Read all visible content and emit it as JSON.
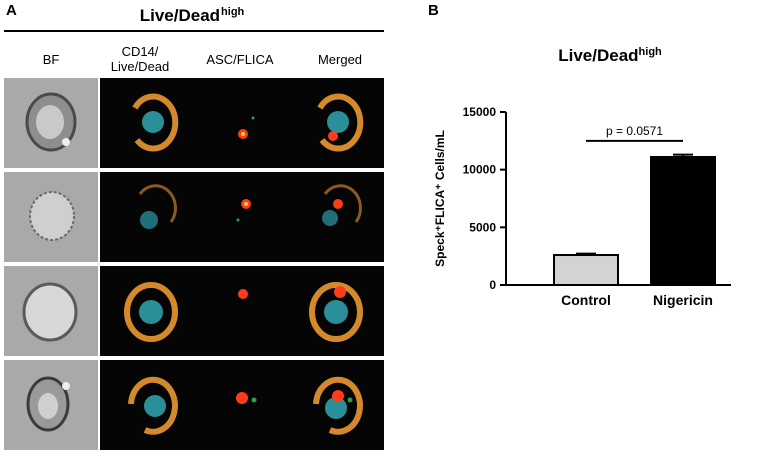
{
  "panel_a": {
    "letter": "A",
    "title": "Live/Dead",
    "title_sup": "high",
    "columns": [
      "BF",
      "CD14/\nLive/Dead",
      "ASC/FLICA",
      "Merged"
    ]
  },
  "panel_b": {
    "letter": "B"
  },
  "chart_data": {
    "type": "bar",
    "title": "Live/Dead",
    "title_sup": "high",
    "categories": [
      "Control",
      "Nigericin"
    ],
    "values": [
      2600,
      11100
    ],
    "errors": [
      120,
      200
    ],
    "bar_colors": [
      "#d3d3d3",
      "#000000"
    ],
    "ylabel": "Speck⁺FLICA⁺ Cells/mL",
    "ylim": [
      0,
      15000
    ],
    "yticks": [
      0,
      5000,
      10000,
      15000
    ],
    "annotation": "p = 0.0571",
    "grid": false
  }
}
